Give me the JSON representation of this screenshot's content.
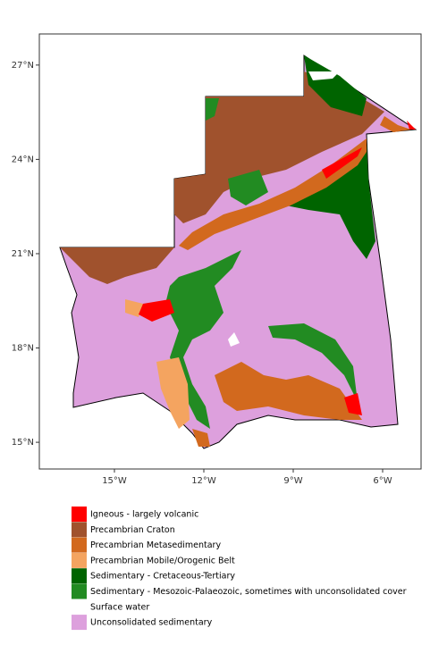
{
  "chart_data": {
    "type": "map",
    "xlim": [
      -17.52,
      -4.71
    ],
    "ylim": [
      14.15,
      27.99
    ],
    "xticks": [
      {
        "value": -15,
        "label": "15°W"
      },
      {
        "value": -12,
        "label": "12°W"
      },
      {
        "value": -9,
        "label": "9°W"
      },
      {
        "value": -6,
        "label": "6°W"
      }
    ],
    "yticks": [
      {
        "value": 15,
        "label": "15°N"
      },
      {
        "value": 18,
        "label": "18°N"
      },
      {
        "value": 21,
        "label": "21°N"
      },
      {
        "value": 24,
        "label": "24°N"
      },
      {
        "value": 27,
        "label": "27°N"
      }
    ],
    "legend": [
      {
        "name": "Igneous - largely volcanic",
        "color": "#FF0000"
      },
      {
        "name": "Precambrian Craton",
        "color": "#A0522D"
      },
      {
        "name": "Precambrian Metasedimentary",
        "color": "#D2691E"
      },
      {
        "name": "Precambrian Mobile/Orogenic Belt",
        "color": "#F4A460"
      },
      {
        "name": "Sedimentary - Cretaceous-Tertiary",
        "color": "#006400"
      },
      {
        "name": "Sedimentary - Mesozoic-Palaeozoic, sometimes with unconsolidated cover",
        "color": "#228B22"
      },
      {
        "name": "Surface water",
        "color": "#FFFFFF"
      },
      {
        "name": "Unconsolidated sedimentary",
        "color": "#DDA0DD"
      }
    ]
  }
}
